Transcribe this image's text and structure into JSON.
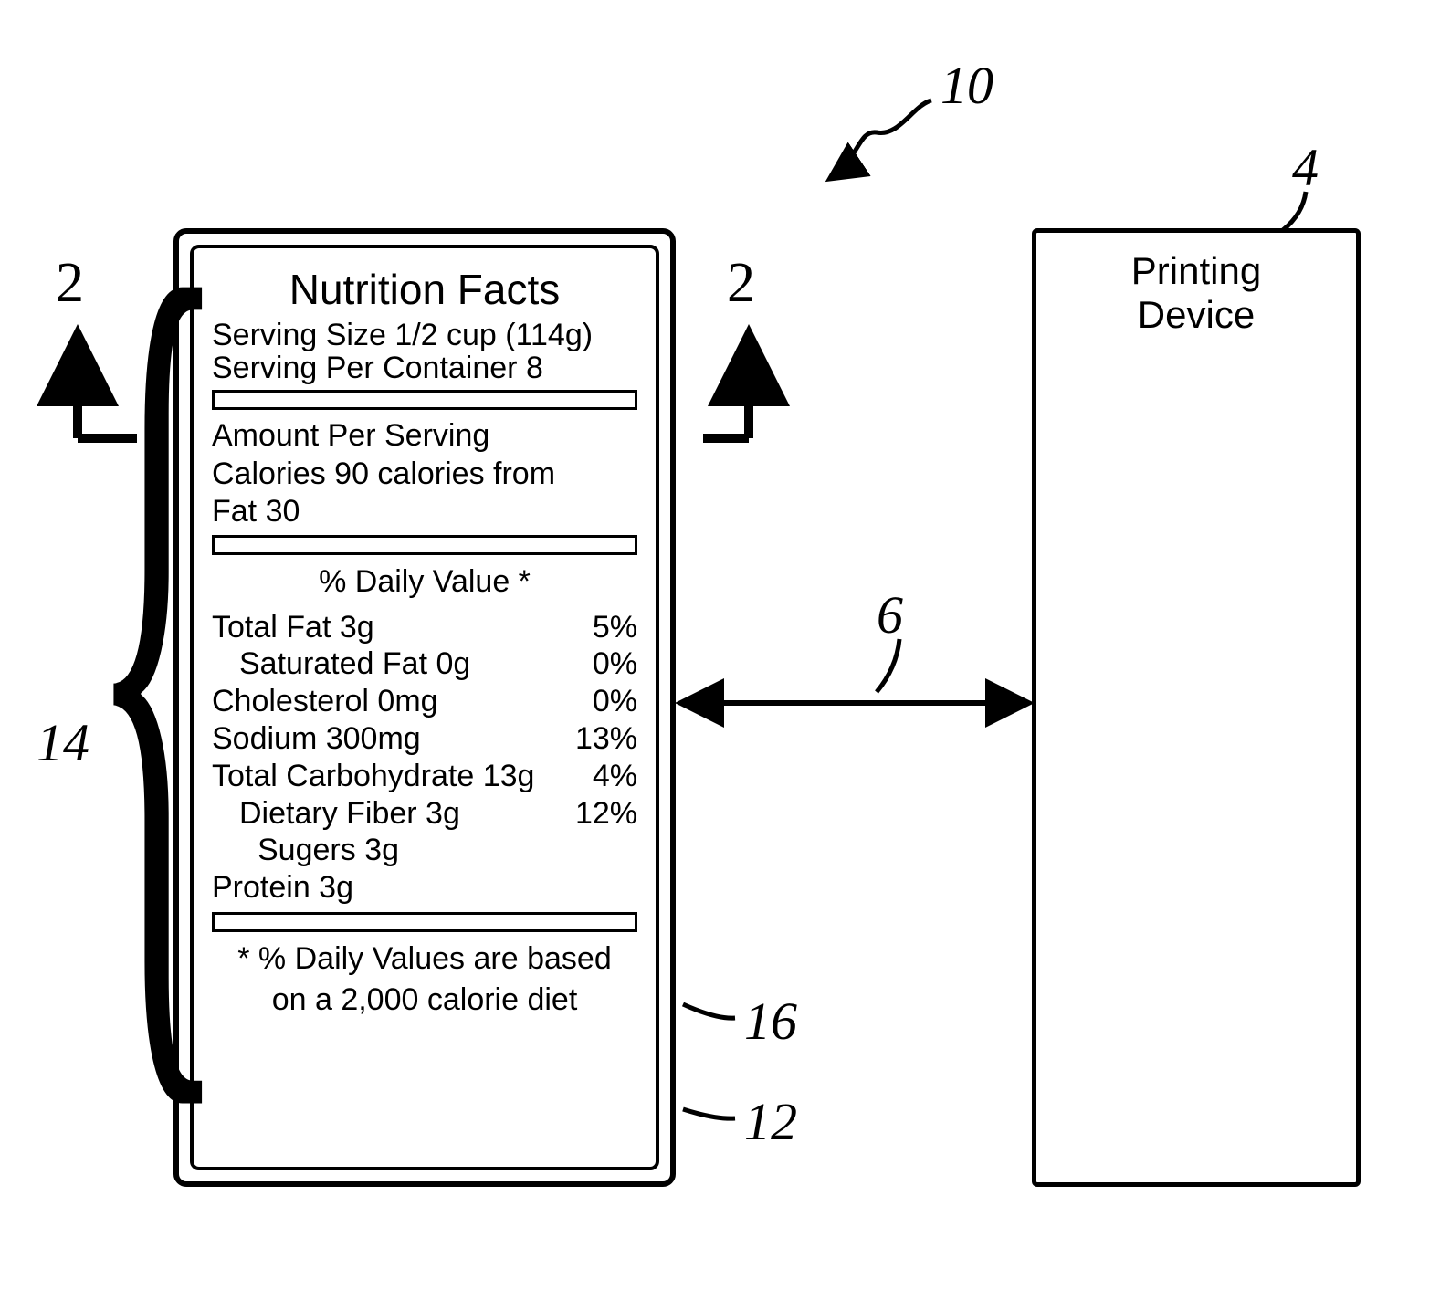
{
  "refs": {
    "r10": "10",
    "r4": "4",
    "r2a": "2",
    "r2b": "2",
    "r14": "14",
    "r6": "6",
    "r16": "16",
    "r12": "12"
  },
  "printer": {
    "line1": "Printing",
    "line2": "Device"
  },
  "label": {
    "title": "Nutrition Facts",
    "serving_size": "Serving Size 1/2 cup (114g)",
    "servings_per": "Serving Per Container 8",
    "amount_line1": "Amount Per Serving",
    "amount_line2": "Calories 90 calories from",
    "amount_line3": "Fat 30",
    "dv_header": "% Daily Value *",
    "rows": [
      {
        "name": "Total Fat 3g",
        "pct": "5%",
        "indent": 0
      },
      {
        "name": "Saturated Fat 0g",
        "pct": "0%",
        "indent": 1
      },
      {
        "name": "Cholesterol 0mg",
        "pct": "0%",
        "indent": 0
      },
      {
        "name": "Sodium 300mg",
        "pct": "13%",
        "indent": 0
      },
      {
        "name": "Total Carbohydrate 13g",
        "pct": "4%",
        "indent": 0
      },
      {
        "name": "Dietary Fiber 3g",
        "pct": "12%",
        "indent": 1
      },
      {
        "name": "Sugers 3g",
        "pct": "",
        "indent": 2
      },
      {
        "name": "Protein 3g",
        "pct": "",
        "indent": 0
      }
    ],
    "foot_line1": "* % Daily Values are based",
    "foot_line2": "on a 2,000 calorie diet"
  },
  "style": {
    "stroke": "#000000",
    "stroke_width": 5,
    "font_ref_size": 58
  }
}
